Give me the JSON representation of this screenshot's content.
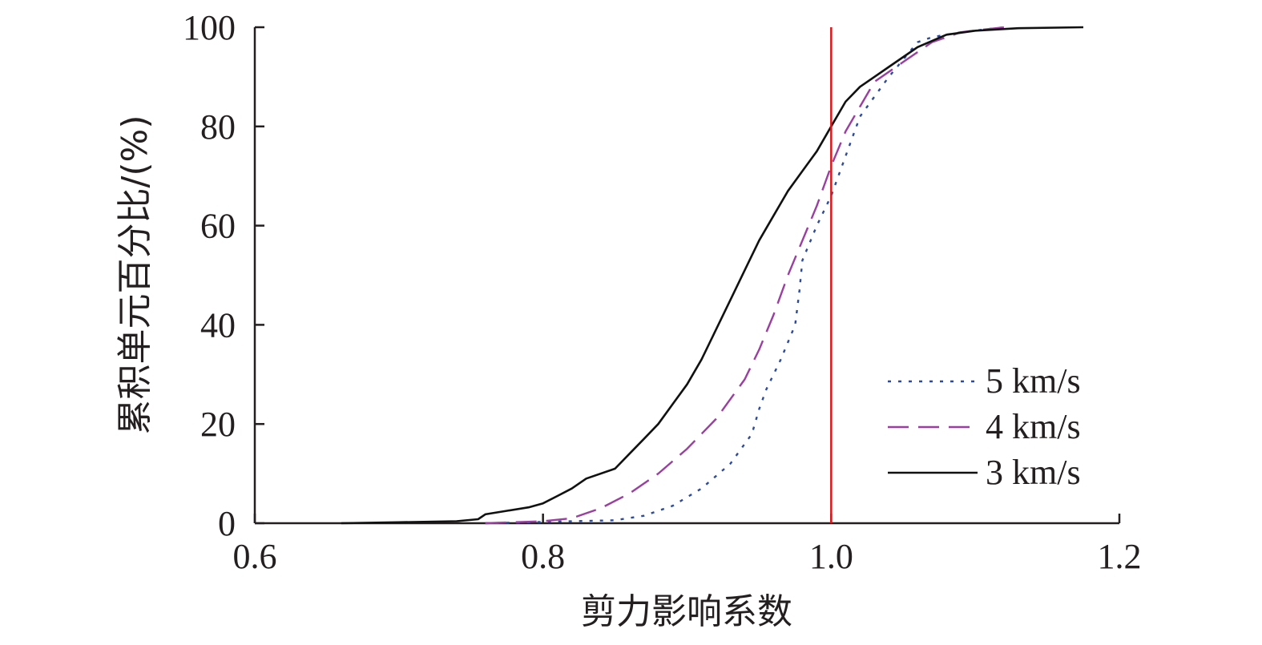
{
  "chart_data": {
    "type": "line",
    "title": "",
    "xlabel": "剪力影响系数",
    "ylabel": "累积单元百分比/(%)",
    "xlim": [
      0.6,
      1.2
    ],
    "ylim": [
      0,
      100
    ],
    "x_ticks": [
      "0.6",
      "0.8",
      "1.0",
      "1.2"
    ],
    "y_ticks": [
      "0",
      "20",
      "40",
      "60",
      "80",
      "100"
    ],
    "grid": false,
    "legend_position": "bottom-right",
    "reference_line": {
      "x": 1.0,
      "color": "#d7191c"
    },
    "series": [
      {
        "name": "5 km/s",
        "style": "dotted",
        "color": "#2e4b9b",
        "points": [
          [
            0.76,
            0
          ],
          [
            0.85,
            0.6
          ],
          [
            0.87,
            1.5
          ],
          [
            0.89,
            3.5
          ],
          [
            0.91,
            7
          ],
          [
            0.93,
            12
          ],
          [
            0.945,
            18
          ],
          [
            0.95,
            23
          ],
          [
            0.955,
            27
          ],
          [
            0.965,
            33
          ],
          [
            0.975,
            40
          ],
          [
            0.978,
            47
          ],
          [
            0.98,
            53
          ],
          [
            0.99,
            60
          ],
          [
            1.0,
            66
          ],
          [
            1.01,
            74
          ],
          [
            1.02,
            82
          ],
          [
            1.04,
            90
          ],
          [
            1.06,
            97
          ],
          [
            1.07,
            98
          ],
          [
            1.09,
            99
          ],
          [
            1.12,
            100
          ]
        ]
      },
      {
        "name": "4 km/s",
        "style": "dashed",
        "color": "#9a3fa0",
        "points": [
          [
            0.76,
            0
          ],
          [
            0.8,
            0.4
          ],
          [
            0.82,
            1
          ],
          [
            0.84,
            3
          ],
          [
            0.86,
            6
          ],
          [
            0.88,
            10
          ],
          [
            0.9,
            15
          ],
          [
            0.92,
            21
          ],
          [
            0.94,
            29
          ],
          [
            0.95,
            35
          ],
          [
            0.96,
            42
          ],
          [
            0.97,
            50
          ],
          [
            0.98,
            57
          ],
          [
            0.99,
            64
          ],
          [
            1.0,
            72
          ],
          [
            1.01,
            79
          ],
          [
            1.02,
            84
          ],
          [
            1.03,
            89
          ],
          [
            1.05,
            93
          ],
          [
            1.07,
            97
          ],
          [
            1.09,
            99
          ],
          [
            1.12,
            100
          ]
        ]
      },
      {
        "name": "3 km/s",
        "style": "solid",
        "color": "#111111",
        "points": [
          [
            0.66,
            0
          ],
          [
            0.7,
            0.2
          ],
          [
            0.74,
            0.4
          ],
          [
            0.755,
            0.8
          ],
          [
            0.76,
            1.8
          ],
          [
            0.775,
            2.5
          ],
          [
            0.79,
            3.2
          ],
          [
            0.8,
            4
          ],
          [
            0.81,
            5.5
          ],
          [
            0.82,
            7
          ],
          [
            0.83,
            9
          ],
          [
            0.85,
            11
          ],
          [
            0.86,
            14
          ],
          [
            0.87,
            17
          ],
          [
            0.88,
            20
          ],
          [
            0.89,
            24
          ],
          [
            0.9,
            28
          ],
          [
            0.91,
            33
          ],
          [
            0.92,
            39
          ],
          [
            0.93,
            45
          ],
          [
            0.94,
            51
          ],
          [
            0.95,
            57
          ],
          [
            0.96,
            62
          ],
          [
            0.97,
            67
          ],
          [
            0.98,
            71
          ],
          [
            0.99,
            75
          ],
          [
            1.0,
            80
          ],
          [
            1.01,
            85
          ],
          [
            1.02,
            88
          ],
          [
            1.03,
            90
          ],
          [
            1.04,
            92
          ],
          [
            1.06,
            96
          ],
          [
            1.08,
            98.5
          ],
          [
            1.1,
            99.3
          ],
          [
            1.13,
            99.8
          ],
          [
            1.175,
            100
          ]
        ]
      }
    ]
  }
}
